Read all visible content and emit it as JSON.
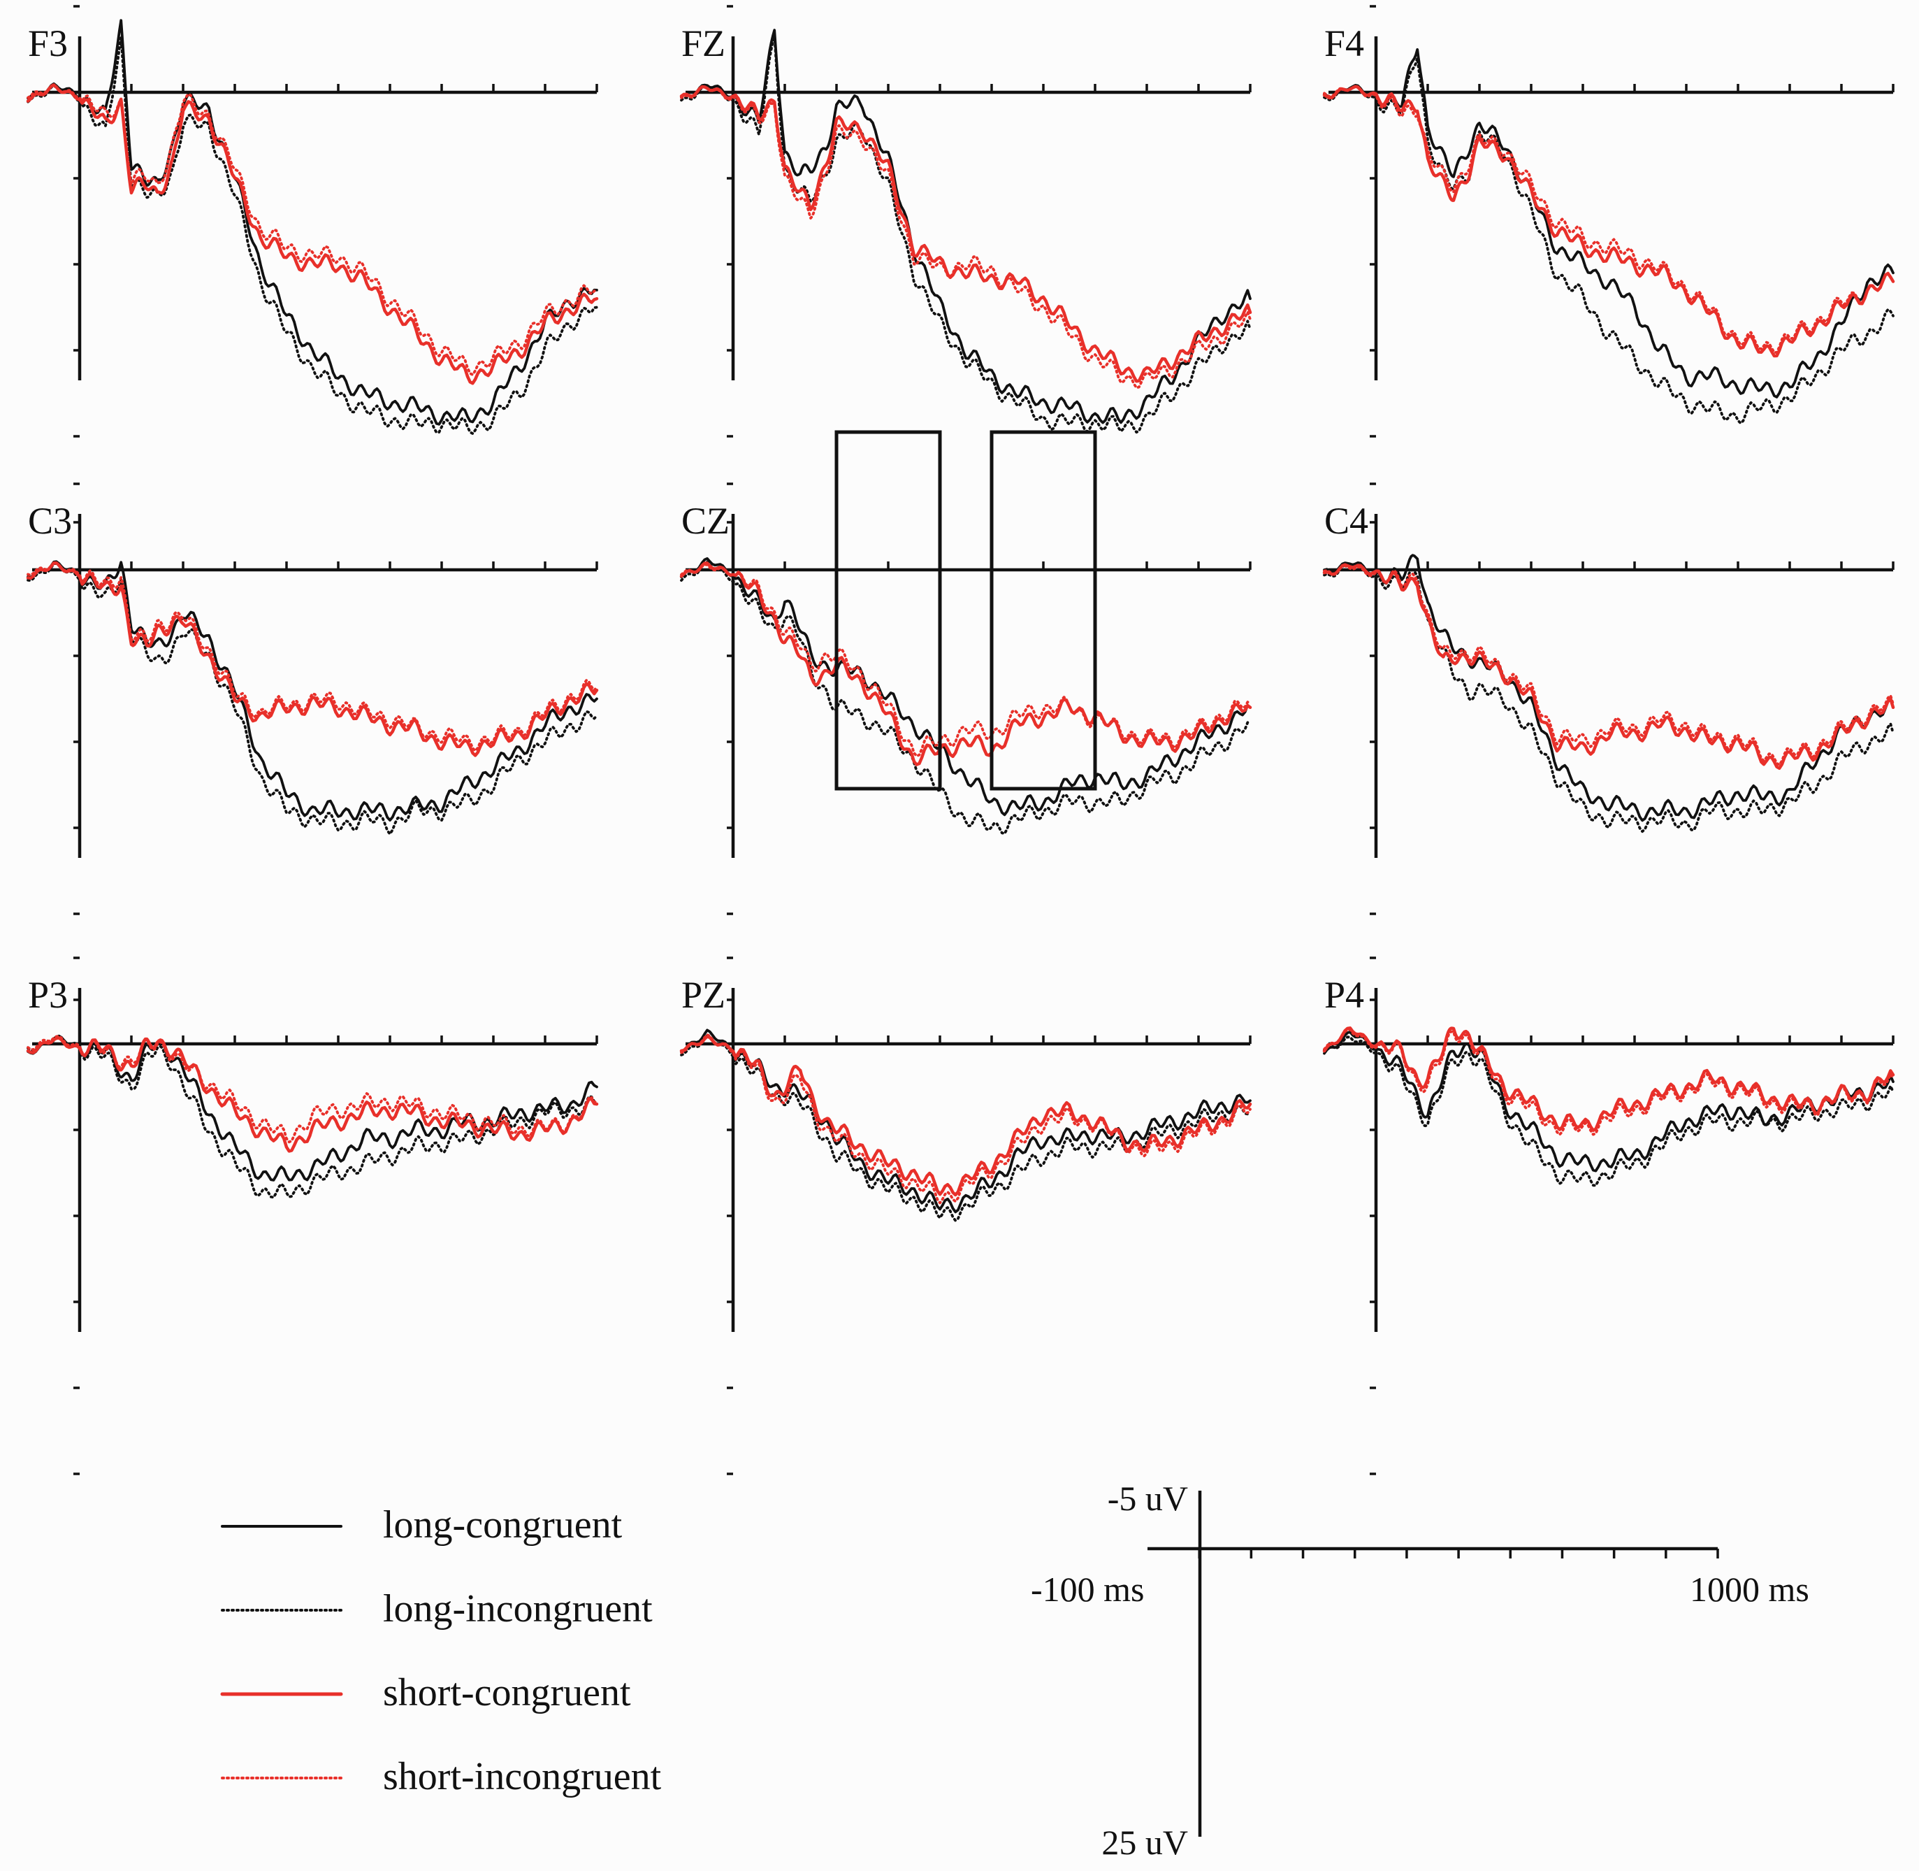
{
  "chart_data": {
    "type": "line",
    "title": "",
    "description_units": {
      "time": "ms",
      "amplitude": "uV"
    },
    "x_range_ms": [
      -100,
      1000
    ],
    "y_range_uV": [
      -5,
      25
    ],
    "y_orientation": "negative-up",
    "x_ticks_ms": [
      -100,
      0,
      100,
      200,
      300,
      400,
      500,
      600,
      700,
      800,
      900,
      1000
    ],
    "y_ticks_uV": [
      -5,
      0,
      5,
      10,
      15,
      20,
      25
    ],
    "colors": {
      "long": "#111111",
      "short": "#e8302a"
    },
    "series": [
      {
        "id": "lc",
        "name": "long-congruent",
        "color": "#111111",
        "dash": "solid"
      },
      {
        "id": "li",
        "name": "long-incongruent",
        "color": "#111111",
        "dash": "dotted"
      },
      {
        "id": "sc",
        "name": "short-congruent",
        "color": "#e8302a",
        "dash": "solid"
      },
      {
        "id": "si",
        "name": "short-incongruent",
        "color": "#e8302a",
        "dash": "dotted"
      }
    ],
    "time_ms": [
      -100,
      -50,
      0,
      50,
      80,
      100,
      130,
      150,
      180,
      200,
      250,
      300,
      350,
      400,
      450,
      500,
      550,
      600,
      650,
      700,
      750,
      800,
      850,
      900,
      950,
      1000
    ],
    "panels": [
      {
        "label": "F3",
        "data": {
          "lc": [
            0.2,
            -0.3,
            0.1,
            1.5,
            -4.0,
            4.0,
            5.3,
            5.5,
            3.0,
            0.5,
            1.0,
            5.0,
            10.0,
            13.0,
            15.0,
            16.5,
            17.5,
            18.0,
            18.3,
            18.8,
            19.0,
            18.0,
            16.0,
            13.5,
            12.0,
            11.5
          ],
          "li": [
            0.4,
            -0.2,
            0.3,
            2.5,
            -3.0,
            5.0,
            6.0,
            6.2,
            4.5,
            1.8,
            2.0,
            6.0,
            11.0,
            14.0,
            16.0,
            17.5,
            18.5,
            19.0,
            19.3,
            19.2,
            19.6,
            19.0,
            17.5,
            15.0,
            13.3,
            12.5
          ],
          "sc": [
            0.3,
            -0.2,
            0.2,
            2.0,
            0.5,
            5.5,
            5.5,
            6.0,
            4.0,
            1.0,
            1.5,
            5.0,
            8.5,
            9.5,
            10.0,
            10.0,
            11.0,
            12.5,
            14.0,
            15.5,
            16.5,
            16.0,
            15.0,
            13.5,
            12.5,
            12.0
          ],
          "si": [
            0.1,
            -0.2,
            0.1,
            1.5,
            0.5,
            5.0,
            5.0,
            5.5,
            3.0,
            0.5,
            1.3,
            4.5,
            8.0,
            9.0,
            9.5,
            9.5,
            10.5,
            12.0,
            13.5,
            15.0,
            16.0,
            15.5,
            14.5,
            13.0,
            12.0,
            11.5
          ]
        }
      },
      {
        "label": "FZ",
        "data": {
          "lc": [
            0.3,
            -0.4,
            0.2,
            1.8,
            -3.8,
            3.5,
            5.0,
            4.5,
            3.0,
            1.0,
            0.5,
            4.0,
            9.0,
            12.5,
            15.0,
            16.5,
            17.5,
            18.0,
            18.3,
            18.8,
            19.0,
            18.0,
            16.5,
            14.5,
            12.8,
            12.0
          ],
          "li": [
            0.5,
            -0.3,
            0.4,
            2.5,
            -3.5,
            4.5,
            6.0,
            6.2,
            4.5,
            3.0,
            2.0,
            5.5,
            10.5,
            13.5,
            15.5,
            17.0,
            18.0,
            19.0,
            19.2,
            19.2,
            19.5,
            19.0,
            17.5,
            16.0,
            14.5,
            13.8
          ],
          "sc": [
            0.2,
            -0.2,
            0.2,
            1.5,
            0.3,
            4.5,
            6.0,
            6.5,
            4.0,
            2.0,
            2.0,
            4.5,
            9.0,
            10.0,
            10.5,
            10.8,
            11.0,
            12.0,
            13.5,
            15.0,
            16.0,
            16.5,
            15.5,
            14.5,
            13.5,
            12.8
          ],
          "si": [
            0.3,
            -0.2,
            0.3,
            1.7,
            0.5,
            5.0,
            6.5,
            7.0,
            4.5,
            2.5,
            2.5,
            5.0,
            9.5,
            10.3,
            10.0,
            10.3,
            11.5,
            12.5,
            14.0,
            15.5,
            16.5,
            16.8,
            16.0,
            15.0,
            14.0,
            13.2
          ]
        }
      },
      {
        "label": "F4",
        "data": {
          "lc": [
            0.2,
            -0.3,
            0.2,
            0.8,
            -3.0,
            2.0,
            4.0,
            4.8,
            3.0,
            2.0,
            3.0,
            6.0,
            9.0,
            10.0,
            11.0,
            12.5,
            15.0,
            16.5,
            16.5,
            17.0,
            17.3,
            17.0,
            15.5,
            13.5,
            11.0,
            10.5
          ],
          "li": [
            0.4,
            -0.3,
            0.4,
            1.2,
            -2.5,
            2.8,
            5.0,
            5.5,
            4.5,
            2.5,
            3.5,
            7.0,
            10.5,
            12.0,
            14.0,
            15.5,
            17.0,
            18.0,
            18.5,
            18.8,
            18.3,
            17.8,
            16.5,
            15.0,
            14.0,
            13.0
          ],
          "sc": [
            0.2,
            -0.2,
            0.1,
            1.0,
            0.5,
            4.0,
            5.5,
            6.0,
            4.5,
            3.0,
            3.5,
            6.0,
            8.0,
            9.0,
            9.5,
            10.0,
            10.5,
            11.5,
            13.0,
            14.5,
            15.0,
            14.5,
            13.5,
            12.5,
            11.5,
            11.0
          ],
          "si": [
            0.1,
            -0.2,
            0.2,
            1.3,
            0.8,
            3.5,
            5.0,
            5.5,
            4.0,
            2.8,
            3.2,
            5.5,
            7.5,
            8.5,
            9.0,
            9.5,
            10.3,
            11.3,
            12.8,
            14.3,
            14.8,
            14.3,
            13.3,
            12.3,
            11.5,
            11.0
          ]
        }
      },
      {
        "label": "C3",
        "data": {
          "lc": [
            0.3,
            -0.3,
            0.2,
            1.2,
            -0.5,
            3.0,
            4.3,
            4.5,
            3.5,
            2.5,
            4.0,
            7.0,
            11.0,
            13.0,
            14.0,
            14.0,
            14.0,
            14.0,
            13.8,
            13.5,
            12.5,
            11.5,
            10.5,
            9.0,
            8.0,
            7.5
          ],
          "li": [
            0.5,
            -0.2,
            0.4,
            1.8,
            0.5,
            3.5,
            5.0,
            5.5,
            4.5,
            3.5,
            5.0,
            8.0,
            12.0,
            14.0,
            14.5,
            14.8,
            14.5,
            14.8,
            14.0,
            14.0,
            13.5,
            12.5,
            11.0,
            10.0,
            9.0,
            8.5
          ],
          "sc": [
            0.3,
            -0.2,
            0.2,
            1.2,
            0.8,
            4.0,
            4.5,
            3.5,
            3.0,
            3.0,
            5.0,
            7.5,
            8.5,
            8.0,
            7.8,
            8.0,
            8.5,
            9.0,
            9.3,
            10.0,
            10.3,
            10.0,
            9.5,
            8.5,
            7.5,
            7.0
          ],
          "si": [
            0.1,
            -0.2,
            0.1,
            1.0,
            0.3,
            3.7,
            4.2,
            3.2,
            2.8,
            2.7,
            4.6,
            7.2,
            8.3,
            7.8,
            7.6,
            7.6,
            8.3,
            8.6,
            9.2,
            9.6,
            10.0,
            9.8,
            9.3,
            8.3,
            7.3,
            6.8
          ]
        }
      },
      {
        "label": "CZ",
        "data": {
          "lc": [
            0.3,
            -0.5,
            0.2,
            2.0,
            3.0,
            1.5,
            3.5,
            5.0,
            5.5,
            5.8,
            6.0,
            7.5,
            9.0,
            10.5,
            12.0,
            13.5,
            13.8,
            13.5,
            12.5,
            12.0,
            12.5,
            12.0,
            11.0,
            10.0,
            9.0,
            8.0
          ],
          "li": [
            0.5,
            -0.3,
            0.5,
            2.5,
            3.5,
            2.5,
            4.0,
            6.0,
            7.0,
            8.0,
            8.5,
            9.5,
            11.0,
            13.0,
            14.5,
            15.0,
            14.5,
            14.0,
            13.5,
            13.5,
            13.5,
            12.5,
            12.0,
            11.0,
            10.0,
            9.0
          ],
          "sc": [
            0.2,
            -0.2,
            0.1,
            1.5,
            2.8,
            4.0,
            5.0,
            6.2,
            6.0,
            5.5,
            6.5,
            8.5,
            11.0,
            10.5,
            10.0,
            10.5,
            9.0,
            8.5,
            8.0,
            8.5,
            9.5,
            10.0,
            10.0,
            9.5,
            8.5,
            8.0
          ],
          "si": [
            0.1,
            -0.1,
            0.1,
            1.3,
            2.5,
            3.5,
            4.5,
            5.5,
            5.0,
            5.0,
            6.0,
            8.0,
            10.5,
            10.0,
            9.3,
            9.5,
            8.5,
            8.0,
            8.0,
            8.7,
            9.3,
            9.8,
            9.8,
            9.3,
            8.3,
            7.8
          ]
        }
      },
      {
        "label": "C4",
        "data": {
          "lc": [
            0.1,
            -0.4,
            0.2,
            0.5,
            -1.0,
            2.0,
            4.0,
            4.5,
            5.0,
            5.5,
            6.0,
            8.0,
            11.0,
            13.0,
            13.5,
            14.0,
            14.0,
            14.0,
            13.5,
            13.0,
            13.2,
            13.0,
            11.0,
            9.5,
            8.5,
            8.0
          ],
          "li": [
            0.4,
            -0.3,
            0.4,
            1.0,
            0.0,
            3.0,
            5.0,
            6.0,
            7.0,
            7.0,
            7.5,
            9.5,
            12.0,
            14.0,
            14.5,
            14.7,
            14.5,
            14.8,
            14.0,
            14.0,
            14.0,
            13.5,
            12.5,
            11.0,
            10.0,
            9.5
          ],
          "sc": [
            0.2,
            -0.2,
            0.1,
            1.0,
            0.5,
            3.0,
            5.5,
            5.0,
            5.0,
            5.3,
            6.0,
            7.5,
            10.0,
            10.5,
            9.5,
            9.5,
            9.0,
            9.3,
            10.0,
            10.0,
            11.0,
            11.0,
            10.5,
            9.5,
            8.5,
            8.0
          ],
          "si": [
            0.1,
            -0.1,
            0.2,
            0.8,
            0.2,
            2.8,
            5.0,
            4.7,
            4.8,
            5.0,
            5.8,
            7.2,
            9.6,
            10.0,
            9.2,
            9.2,
            8.7,
            9.0,
            9.8,
            9.8,
            10.8,
            10.8,
            10.3,
            9.3,
            8.3,
            7.8
          ]
        }
      },
      {
        "label": "P3",
        "data": {
          "lc": [
            0.5,
            -0.3,
            0.1,
            0.5,
            1.5,
            2.0,
            0.5,
            0.0,
            0.5,
            1.5,
            4.0,
            6.0,
            7.5,
            7.8,
            7.2,
            6.5,
            5.5,
            5.5,
            5.0,
            5.0,
            4.5,
            4.5,
            4.0,
            3.8,
            3.5,
            2.5
          ],
          "li": [
            0.3,
            -0.2,
            0.2,
            0.8,
            1.8,
            2.5,
            1.0,
            0.3,
            1.0,
            2.5,
            5.0,
            7.0,
            8.5,
            8.8,
            8.0,
            7.5,
            7.0,
            6.5,
            6.0,
            5.8,
            5.5,
            5.0,
            4.5,
            4.0,
            3.8,
            3.5
          ],
          "sc": [
            0.4,
            -0.2,
            0.2,
            0.3,
            1.0,
            1.3,
            0.2,
            -0.2,
            0.3,
            1.0,
            2.5,
            4.0,
            5.0,
            6.0,
            5.0,
            4.5,
            4.0,
            3.8,
            4.0,
            4.5,
            4.7,
            5.0,
            5.2,
            5.0,
            4.5,
            3.5
          ],
          "si": [
            0.2,
            -0.3,
            0.1,
            0.5,
            0.8,
            1.0,
            0.3,
            -0.1,
            0.5,
            1.3,
            2.2,
            3.5,
            4.5,
            5.5,
            4.2,
            3.8,
            3.5,
            3.3,
            3.6,
            4.0,
            4.3,
            4.6,
            4.9,
            4.9,
            4.4,
            3.4
          ]
        }
      },
      {
        "label": "PZ",
        "data": {
          "lc": [
            0.3,
            -0.6,
            0.3,
            1.5,
            2.5,
            2.5,
            3.0,
            3.5,
            4.5,
            5.5,
            7.0,
            8.0,
            8.5,
            9.5,
            9.0,
            8.0,
            6.5,
            5.5,
            5.5,
            5.2,
            5.5,
            5.0,
            4.5,
            4.0,
            3.5,
            3.3
          ],
          "li": [
            0.5,
            -0.3,
            0.5,
            2.0,
            3.0,
            3.0,
            3.5,
            4.2,
            5.5,
            6.5,
            7.5,
            8.5,
            9.0,
            10.0,
            9.5,
            8.5,
            7.5,
            6.5,
            6.0,
            6.0,
            6.0,
            5.5,
            5.0,
            4.5,
            4.0,
            4.0
          ],
          "sc": [
            0.2,
            -0.2,
            0.2,
            1.5,
            3.0,
            2.5,
            1.5,
            3.0,
            4.5,
            5.0,
            6.0,
            7.0,
            7.5,
            8.5,
            8.0,
            7.0,
            5.5,
            4.0,
            4.0,
            4.5,
            5.5,
            6.0,
            5.5,
            5.0,
            4.3,
            3.5
          ],
          "si": [
            0.3,
            -0.3,
            0.3,
            1.7,
            3.3,
            3.0,
            2.0,
            3.5,
            5.0,
            5.5,
            6.5,
            7.5,
            8.0,
            9.0,
            8.3,
            7.3,
            6.0,
            4.5,
            4.3,
            4.6,
            5.6,
            6.3,
            5.8,
            5.2,
            4.5,
            3.8
          ]
        }
      },
      {
        "label": "P4",
        "data": {
          "lc": [
            0.5,
            -0.6,
            0.2,
            1.5,
            3.0,
            4.0,
            2.0,
            0.5,
            0.0,
            0.5,
            3.5,
            5.0,
            6.5,
            7.0,
            6.8,
            6.5,
            5.5,
            4.5,
            4.0,
            3.8,
            4.5,
            4.0,
            3.5,
            3.0,
            2.8,
            2.2
          ],
          "li": [
            0.3,
            -0.3,
            0.4,
            2.0,
            3.5,
            4.5,
            2.5,
            1.0,
            0.5,
            1.0,
            4.0,
            6.0,
            7.5,
            8.0,
            7.5,
            7.0,
            6.0,
            5.0,
            4.5,
            4.5,
            4.5,
            4.5,
            4.0,
            3.8,
            3.3,
            2.8
          ],
          "sc": [
            0.3,
            -0.8,
            0.0,
            0.5,
            2.0,
            2.0,
            0.5,
            -1.0,
            -0.5,
            0.5,
            2.5,
            3.5,
            4.5,
            4.8,
            4.0,
            3.5,
            3.0,
            2.5,
            2.0,
            2.5,
            3.0,
            3.5,
            3.5,
            3.0,
            2.8,
            1.8
          ],
          "si": [
            0.2,
            -0.7,
            0.1,
            0.6,
            2.2,
            2.3,
            0.7,
            -0.8,
            -0.3,
            0.7,
            2.8,
            3.8,
            4.8,
            5.0,
            4.3,
            3.8,
            3.2,
            2.7,
            2.2,
            2.7,
            3.2,
            3.7,
            3.6,
            3.1,
            2.9,
            2.0
          ]
        }
      }
    ],
    "highlight_panel": "CZ",
    "highlight_windows_ms": [
      [
        200,
        400
      ],
      [
        500,
        700
      ]
    ],
    "scale_bar": {
      "x_min_label": "-100 ms",
      "x_max_label": "1000 ms",
      "y_top_label": "-5 uV",
      "y_bottom_label": "25 uV"
    },
    "legend": [
      {
        "label": "long-congruent",
        "series": "lc"
      },
      {
        "label": "long-incongruent",
        "series": "li"
      },
      {
        "label": "short-congruent",
        "series": "sc"
      },
      {
        "label": "short-incongruent",
        "series": "si"
      }
    ]
  }
}
